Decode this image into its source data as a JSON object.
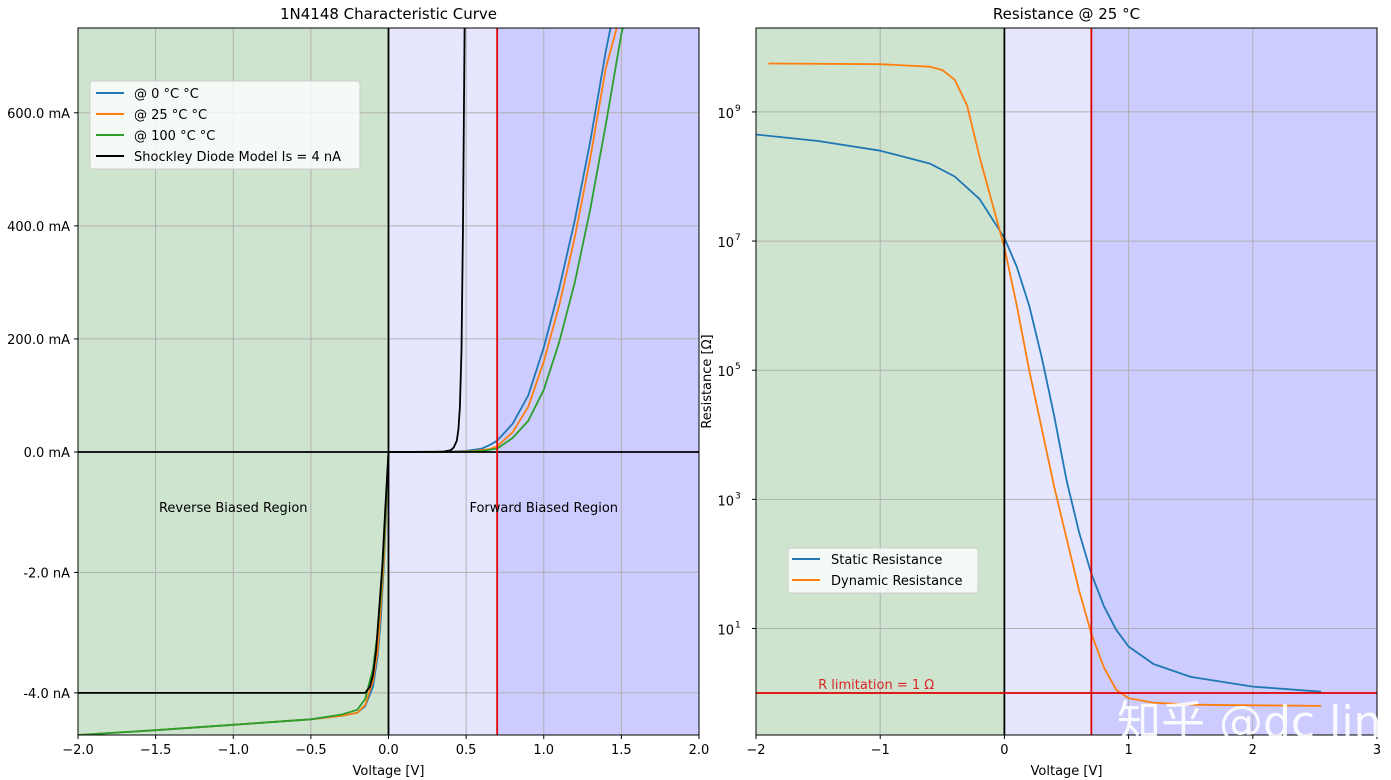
{
  "chart_data": [
    {
      "type": "line",
      "title": "1N4148 Characteristic Curve",
      "xlabel": "Voltage [V]",
      "ylabel": "",
      "xlim": [
        -2.0,
        2.0
      ],
      "x_ticks": [
        -2.0,
        -1.5,
        -1.0,
        -0.5,
        0.0,
        0.5,
        1.0,
        1.5,
        2.0
      ],
      "x_tick_labels": [
        "−2.0",
        "−1.5",
        "−1.0",
        "−0.5",
        "0.0",
        "0.5",
        "1.0",
        "1.5",
        "2.0"
      ],
      "y_scale": "split (mA above 0, nA below 0)",
      "y_ticks_mA": [
        0,
        200,
        400,
        600
      ],
      "y_tick_labels_mA": [
        "0.0 mA",
        "200.0 mA",
        "400.0 mA",
        "600.0 mA"
      ],
      "y_ticks_nA": [
        -2,
        -4
      ],
      "y_tick_labels_nA": [
        "-2.0 nA",
        "-4.0 nA"
      ],
      "ylim_mA": [
        0,
        750
      ],
      "ylim_nA": [
        -4.7,
        0
      ],
      "grid": true,
      "regions": {
        "reverse": {
          "label": "Reverse Biased Region",
          "x_range": [
            -2.0,
            0.0
          ],
          "color": "#cfe4cf"
        },
        "forward_low": {
          "x_range": [
            0.0,
            0.7
          ],
          "color": "#e6e6ff"
        },
        "forward_high": {
          "x_range": [
            0.7,
            2.0
          ],
          "color": "#ccccff"
        },
        "forward_label": "Forward Biased Region"
      },
      "vlines": [
        {
          "x": 0.0,
          "color": "#000000"
        },
        {
          "x": 0.7,
          "color": "#e00000"
        }
      ],
      "hlines": [
        {
          "y": 0.0,
          "color": "#000000"
        }
      ],
      "legend_position": "upper-left",
      "series": [
        {
          "name": "@ 0 °C °C",
          "color": "#1f77b4",
          "forward_points": [
            [
              0.0,
              0
            ],
            [
              0.4,
              0.5
            ],
            [
              0.5,
              2
            ],
            [
              0.6,
              6
            ],
            [
              0.65,
              12
            ],
            [
              0.7,
              20
            ],
            [
              0.8,
              50
            ],
            [
              0.9,
              100
            ],
            [
              1.0,
              185
            ],
            [
              1.1,
              290
            ],
            [
              1.2,
              410
            ],
            [
              1.3,
              550
            ],
            [
              1.4,
              710
            ],
            [
              1.43,
              750
            ]
          ],
          "reverse_points": [
            [
              -2.0,
              -4.7
            ],
            [
              -1.5,
              -4.62
            ],
            [
              -1.0,
              -4.53
            ],
            [
              -0.5,
              -4.44
            ],
            [
              -0.3,
              -4.38
            ],
            [
              -0.2,
              -4.33
            ],
            [
              -0.15,
              -4.22
            ],
            [
              -0.1,
              -3.9
            ],
            [
              -0.07,
              -3.4
            ],
            [
              -0.05,
              -2.8
            ],
            [
              -0.03,
              -1.9
            ],
            [
              -0.015,
              -1.0
            ],
            [
              0.0,
              0.0
            ]
          ]
        },
        {
          "name": "@ 25 °C °C",
          "color": "#ff7f0e",
          "forward_points": [
            [
              0.0,
              0
            ],
            [
              0.45,
              0.5
            ],
            [
              0.55,
              2
            ],
            [
              0.65,
              5
            ],
            [
              0.7,
              10
            ],
            [
              0.8,
              35
            ],
            [
              0.9,
              80
            ],
            [
              1.0,
              160
            ],
            [
              1.1,
              260
            ],
            [
              1.2,
              380
            ],
            [
              1.3,
              520
            ],
            [
              1.4,
              680
            ],
            [
              1.47,
              750
            ]
          ],
          "reverse_points": [
            [
              -2.0,
              -4.7
            ],
            [
              -1.5,
              -4.62
            ],
            [
              -1.0,
              -4.53
            ],
            [
              -0.5,
              -4.44
            ],
            [
              -0.3,
              -4.38
            ],
            [
              -0.2,
              -4.33
            ],
            [
              -0.15,
              -4.2
            ],
            [
              -0.1,
              -3.8
            ],
            [
              -0.07,
              -3.3
            ],
            [
              -0.05,
              -2.6
            ],
            [
              -0.03,
              -1.8
            ],
            [
              -0.015,
              -0.9
            ],
            [
              0.0,
              0.0
            ]
          ]
        },
        {
          "name": "@ 100 °C °C",
          "color": "#2ca02c",
          "forward_points": [
            [
              0.0,
              0
            ],
            [
              0.5,
              0.5
            ],
            [
              0.6,
              2
            ],
            [
              0.7,
              6
            ],
            [
              0.8,
              25
            ],
            [
              0.9,
              55
            ],
            [
              1.0,
              110
            ],
            [
              1.1,
              195
            ],
            [
              1.2,
              300
            ],
            [
              1.3,
              430
            ],
            [
              1.4,
              580
            ],
            [
              1.5,
              740
            ],
            [
              1.51,
              750
            ]
          ],
          "reverse_points": [
            [
              -2.0,
              -4.7
            ],
            [
              -1.5,
              -4.62
            ],
            [
              -1.0,
              -4.53
            ],
            [
              -0.5,
              -4.44
            ],
            [
              -0.3,
              -4.36
            ],
            [
              -0.2,
              -4.28
            ],
            [
              -0.15,
              -4.1
            ],
            [
              -0.1,
              -3.6
            ],
            [
              -0.07,
              -3.0
            ],
            [
              -0.05,
              -2.4
            ],
            [
              -0.03,
              -1.6
            ],
            [
              -0.015,
              -0.8
            ],
            [
              0.0,
              0.0
            ]
          ]
        },
        {
          "name": "Shockley Diode Model Is = 4 nA",
          "color": "#000000",
          "forward_points": [
            [
              0.0,
              0
            ],
            [
              0.3,
              0.1
            ],
            [
              0.35,
              0.5
            ],
            [
              0.4,
              3
            ],
            [
              0.42,
              8
            ],
            [
              0.44,
              20
            ],
            [
              0.45,
              40
            ],
            [
              0.46,
              80
            ],
            [
              0.47,
              180
            ],
            [
              0.48,
              400
            ],
            [
              0.49,
              750
            ]
          ],
          "reverse_points": [
            [
              -2.0,
              -4.0
            ],
            [
              -0.3,
              -4.0
            ],
            [
              -0.15,
              -4.0
            ],
            [
              -0.12,
              -3.9
            ],
            [
              -0.1,
              -3.7
            ],
            [
              -0.08,
              -3.3
            ],
            [
              -0.06,
              -2.6
            ],
            [
              -0.04,
              -1.9
            ],
            [
              -0.02,
              -0.9
            ],
            [
              0.0,
              0.0
            ]
          ]
        }
      ]
    },
    {
      "type": "line",
      "title": "Resistance @ 25 °C",
      "xlabel": "Voltage [V]",
      "ylabel": "Resistance [Ω]",
      "xlim": [
        -2,
        3
      ],
      "x_ticks": [
        -2,
        -1,
        0,
        1,
        2,
        3
      ],
      "x_tick_labels": [
        "−2",
        "−1",
        "0",
        "1",
        "2",
        "3"
      ],
      "y_scale": "log",
      "ylim_log10": [
        -0.65,
        10.3
      ],
      "y_ticks_log10": [
        1,
        3,
        5,
        7,
        9
      ],
      "y_tick_base": "10",
      "y_tick_exponents": [
        "1",
        "3",
        "5",
        "7",
        "9"
      ],
      "grid": true,
      "regions": {
        "reverse": {
          "x_range": [
            -2,
            0
          ],
          "color": "#cfe4cf"
        },
        "forward_low": {
          "x_range": [
            0,
            0.7
          ],
          "color": "#e6e6ff"
        },
        "forward_high": {
          "x_range": [
            0.7,
            3
          ],
          "color": "#ccccff"
        }
      },
      "vlines": [
        {
          "x": 0.0,
          "color": "#000000"
        },
        {
          "x": 0.7,
          "color": "#e00000"
        }
      ],
      "hlines": [
        {
          "y": 1,
          "color": "#e00000",
          "label": "R limitation = 1 Ω"
        }
      ],
      "legend_position": "lower-left",
      "series": [
        {
          "name": "Static Resistance",
          "color": "#1f77b4",
          "points_log10": [
            [
              -2.0,
              8.65
            ],
            [
              -1.5,
              8.55
            ],
            [
              -1.0,
              8.4
            ],
            [
              -0.6,
              8.2
            ],
            [
              -0.4,
              8.0
            ],
            [
              -0.2,
              7.65
            ],
            [
              0.0,
              7.05
            ],
            [
              0.1,
              6.6
            ],
            [
              0.2,
              6.0
            ],
            [
              0.3,
              5.2
            ],
            [
              0.4,
              4.3
            ],
            [
              0.5,
              3.3
            ],
            [
              0.6,
              2.5
            ],
            [
              0.7,
              1.85
            ],
            [
              0.8,
              1.35
            ],
            [
              0.9,
              0.98
            ],
            [
              1.0,
              0.72
            ],
            [
              1.2,
              0.45
            ],
            [
              1.5,
              0.25
            ],
            [
              2.0,
              0.1
            ],
            [
              2.55,
              0.02
            ]
          ]
        },
        {
          "name": "Dynamic Resistance",
          "color": "#ff7f0e",
          "points_log10": [
            [
              -1.9,
              9.75
            ],
            [
              -1.0,
              9.74
            ],
            [
              -0.6,
              9.7
            ],
            [
              -0.5,
              9.65
            ],
            [
              -0.4,
              9.5
            ],
            [
              -0.3,
              9.1
            ],
            [
              -0.2,
              8.3
            ],
            [
              -0.1,
              7.6
            ],
            [
              0.0,
              6.9
            ],
            [
              0.1,
              6.0
            ],
            [
              0.2,
              5.0
            ],
            [
              0.3,
              4.1
            ],
            [
              0.4,
              3.2
            ],
            [
              0.5,
              2.4
            ],
            [
              0.6,
              1.6
            ],
            [
              0.7,
              0.92
            ],
            [
              0.8,
              0.4
            ],
            [
              0.9,
              0.05
            ],
            [
              1.0,
              -0.08
            ],
            [
              1.2,
              -0.15
            ],
            [
              1.5,
              -0.18
            ],
            [
              2.0,
              -0.19
            ],
            [
              2.55,
              -0.2
            ]
          ]
        }
      ]
    }
  ],
  "watermark": "知乎 @dc lin"
}
